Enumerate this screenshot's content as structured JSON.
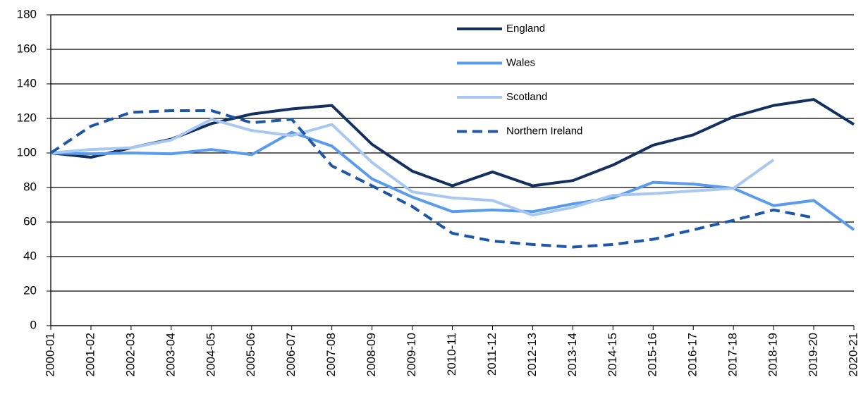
{
  "chart_data": {
    "type": "line",
    "categories": [
      "2000-01",
      "2001-02",
      "2002-03",
      "2003-04",
      "2004-05",
      "2005-06",
      "2006-07",
      "2007-08",
      "2008-09",
      "2009-10",
      "2010-11",
      "2011-12",
      "2012-13",
      "2013-14",
      "2014-15",
      "2015-16",
      "2016-17",
      "2017-18",
      "2018-19",
      "2019-20",
      "2020-21"
    ],
    "series": [
      {
        "name": "England",
        "color": "#13305f",
        "style": "solid",
        "values": [
          100,
          97.5,
          103,
          108,
          117,
          122.5,
          125.5,
          127.5,
          105,
          89.5,
          81,
          89,
          81,
          84,
          93,
          104.5,
          110.5,
          121,
          127.5,
          131,
          116.5
        ]
      },
      {
        "name": "Wales",
        "color": "#5a9bec",
        "style": "solid",
        "values": [
          100,
          99.5,
          100,
          99.5,
          102,
          99,
          112,
          104,
          85,
          74.5,
          66,
          67,
          66,
          70.5,
          74,
          83,
          82,
          79.5,
          69.5,
          72.5,
          55.5
        ]
      },
      {
        "name": "Scotland",
        "color": "#a8c8f1",
        "style": "solid",
        "values": [
          100,
          102,
          103,
          107.5,
          119.5,
          113,
          110,
          116.5,
          94.5,
          77.5,
          74,
          72.5,
          64,
          68.5,
          75.5,
          76.5,
          78,
          79.5,
          96,
          null,
          null
        ]
      },
      {
        "name": "Northern Ireland",
        "color": "#1e56a8",
        "style": "dashed",
        "values": [
          100,
          115.5,
          123.5,
          124.5,
          124.5,
          117.5,
          119.5,
          92.5,
          81,
          69,
          53.5,
          49,
          47,
          45.5,
          47,
          50,
          55.5,
          61,
          67,
          62.5,
          null
        ]
      }
    ],
    "ylim": [
      0,
      180
    ],
    "yticks": [
      0,
      20,
      40,
      60,
      80,
      100,
      120,
      140,
      160,
      180
    ],
    "grid": true
  }
}
